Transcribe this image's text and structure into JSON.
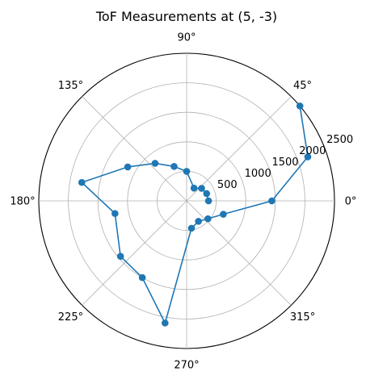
{
  "chart_data": {
    "type": "scatter",
    "projection": "polar",
    "title": "ToF Measurements at (5, -3)",
    "angular_unit": "degrees",
    "theta_ticks": [
      0,
      45,
      90,
      135,
      180,
      225,
      270,
      315
    ],
    "theta_tick_labels": [
      "0°",
      "45°",
      "90°",
      "135°",
      "180°",
      "225°",
      "270°",
      "315°"
    ],
    "r_ticks": [
      500,
      1000,
      1500,
      2000,
      2500
    ],
    "r_tick_labels": [
      "500",
      "1000",
      "1500",
      "2000",
      "2500"
    ],
    "rlim": [
      0,
      2500
    ],
    "r_label_angle": 22.5,
    "grid": true,
    "series": [
      {
        "color": "#1f77b4",
        "marker": "circle",
        "points": [
          {
            "theta": 0,
            "r": 370
          },
          {
            "theta": 20,
            "r": 360
          },
          {
            "theta": 40,
            "r": 330
          },
          {
            "theta": 60,
            "r": 250
          },
          {
            "theta": 90,
            "r": 500
          },
          {
            "theta": 110,
            "r": 620
          },
          {
            "theta": 130,
            "r": 830
          },
          {
            "theta": 150,
            "r": 1150
          },
          {
            "theta": 170,
            "r": 1800
          },
          {
            "theta": 190,
            "r": 1230
          },
          {
            "theta": 220,
            "r": 1460
          },
          {
            "theta": 240,
            "r": 1500
          },
          {
            "theta": 260,
            "r": 2100
          },
          {
            "theta": 280,
            "r": 470
          },
          {
            "theta": 300,
            "r": 400
          },
          {
            "theta": 320,
            "r": 470
          },
          {
            "theta": 340,
            "r": 660
          },
          {
            "theta": 360,
            "r": 1440
          },
          {
            "theta": 380,
            "r": 2180
          },
          {
            "theta": 400,
            "r": 2500
          }
        ]
      }
    ]
  }
}
